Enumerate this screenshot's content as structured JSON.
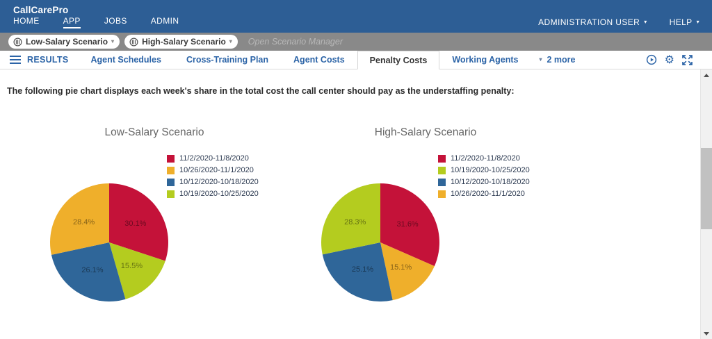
{
  "colors": {
    "header_bg": "#2d5e95",
    "scenario_bar_bg": "#898989",
    "accent_blue": "#2c64a7",
    "active_tab_text": "#333333",
    "chart_title_text": "#666666",
    "scrollbar_thumb": "#c1c1c1"
  },
  "header": {
    "brand": "CallCarePro",
    "nav": [
      {
        "label": "HOME",
        "active": false
      },
      {
        "label": "APP",
        "active": true
      },
      {
        "label": "JOBS",
        "active": false
      },
      {
        "label": "ADMIN",
        "active": false
      }
    ],
    "user_menu": {
      "label": "ADMINISTRATION USER"
    },
    "help_menu": {
      "label": "HELP"
    }
  },
  "scenario_bar": {
    "chips": [
      {
        "label": "Low-Salary Scenario"
      },
      {
        "label": "High-Salary Scenario"
      }
    ],
    "manager_link": "Open Scenario Manager"
  },
  "tab_bar": {
    "results_label": "RESULTS",
    "tabs": [
      {
        "label": "Agent Schedules",
        "active": false
      },
      {
        "label": "Cross-Training Plan",
        "active": false
      },
      {
        "label": "Agent Costs",
        "active": false
      },
      {
        "label": "Penalty Costs",
        "active": true
      },
      {
        "label": "Working Agents",
        "active": false
      }
    ],
    "more_label": "2 more",
    "icons": [
      "play-circle-icon",
      "gear-icon",
      "expand-icon"
    ]
  },
  "description": "The following pie chart displays each week's share in the total cost the call center should pay as the understaffing penalty:",
  "chart_data": [
    {
      "type": "pie",
      "title": "Low-Salary Scenario",
      "unit": "%",
      "slices": [
        {
          "label": "11/2/2020-11/8/2020",
          "value": 30.1,
          "color": "#c41239"
        },
        {
          "label": "10/19/2020-10/25/2020",
          "value": 15.5,
          "color": "#b4cc1f"
        },
        {
          "label": "10/12/2020-10/18/2020",
          "value": 26.1,
          "color": "#2f6699"
        },
        {
          "label": "10/26/2020-11/1/2020",
          "value": 28.4,
          "color": "#efaf2b"
        }
      ],
      "legend_order": [
        0,
        3,
        2,
        1
      ],
      "legend_position": "right"
    },
    {
      "type": "pie",
      "title": "High-Salary Scenario",
      "unit": "%",
      "slices": [
        {
          "label": "11/2/2020-11/8/2020",
          "value": 31.6,
          "color": "#c41239"
        },
        {
          "label": "10/26/2020-11/1/2020",
          "value": 15.1,
          "color": "#efaf2b"
        },
        {
          "label": "10/12/2020-10/18/2020",
          "value": 25.1,
          "color": "#2f6699"
        },
        {
          "label": "10/19/2020-10/25/2020",
          "value": 28.3,
          "color": "#b4cc1f"
        }
      ],
      "legend_order": [
        0,
        3,
        2,
        1
      ],
      "legend_position": "right"
    }
  ]
}
